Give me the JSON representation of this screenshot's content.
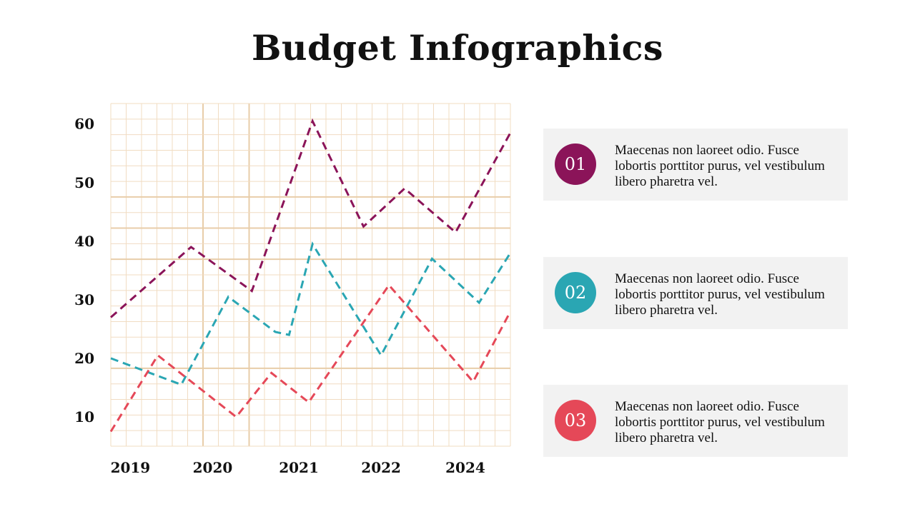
{
  "title": "Budget Infographics",
  "colors": {
    "grid": "#f1dcc2",
    "grid_major": "#e8cda9",
    "text": "#111111",
    "card_bg": "#f2f2f2"
  },
  "chart_data": {
    "type": "line",
    "title": "Budget Infographics",
    "xlabel": "",
    "ylabel": "",
    "x_ticks": [
      "2019",
      "2020",
      "2021",
      "2022",
      "2024"
    ],
    "x_tick_positions": [
      0.5,
      2.6,
      4.8,
      6.9,
      9.05
    ],
    "xlim": [
      0,
      10.2
    ],
    "y_ticks": [
      10,
      20,
      30,
      40,
      50,
      60
    ],
    "ylim": [
      5,
      63.5
    ],
    "grid": true,
    "line_style": "dashed",
    "series": [
      {
        "name": "01",
        "color": "#8b1459",
        "x": [
          0,
          2.05,
          3.6,
          5.15,
          6.45,
          7.5,
          8.8,
          10.2
        ],
        "y": [
          27,
          39,
          31.5,
          60.5,
          42.5,
          49,
          41.5,
          58.5
        ]
      },
      {
        "name": "02",
        "color": "#2aa6b3",
        "x": [
          0,
          1.8,
          3.0,
          4.2,
          4.55,
          5.15,
          6.9,
          8.2,
          9.4,
          10.2
        ],
        "y": [
          20,
          15.5,
          30.5,
          24.5,
          24,
          39.5,
          20.5,
          37,
          29.5,
          38
        ]
      },
      {
        "name": "03",
        "color": "#e54858",
        "x": [
          0,
          1.2,
          3.2,
          4.1,
          5.05,
          7.1,
          9.25,
          10.2
        ],
        "y": [
          7.5,
          20.5,
          10,
          17.5,
          12.5,
          32.5,
          16,
          28
        ]
      }
    ]
  },
  "cards": [
    {
      "number": "01",
      "color": "#8b1459",
      "text": "Maecenas non laoreet odio. Fusce lobortis porttitor purus, vel vestibulum libero pharetra vel."
    },
    {
      "number": "02",
      "color": "#2aa6b3",
      "text": "Maecenas non laoreet odio. Fusce lobortis porttitor purus, vel vestibulum libero pharetra vel."
    },
    {
      "number": "03",
      "color": "#e54858",
      "text": "Maecenas non laoreet odio. Fusce lobortis porttitor purus, vel vestibulum libero pharetra vel."
    }
  ]
}
